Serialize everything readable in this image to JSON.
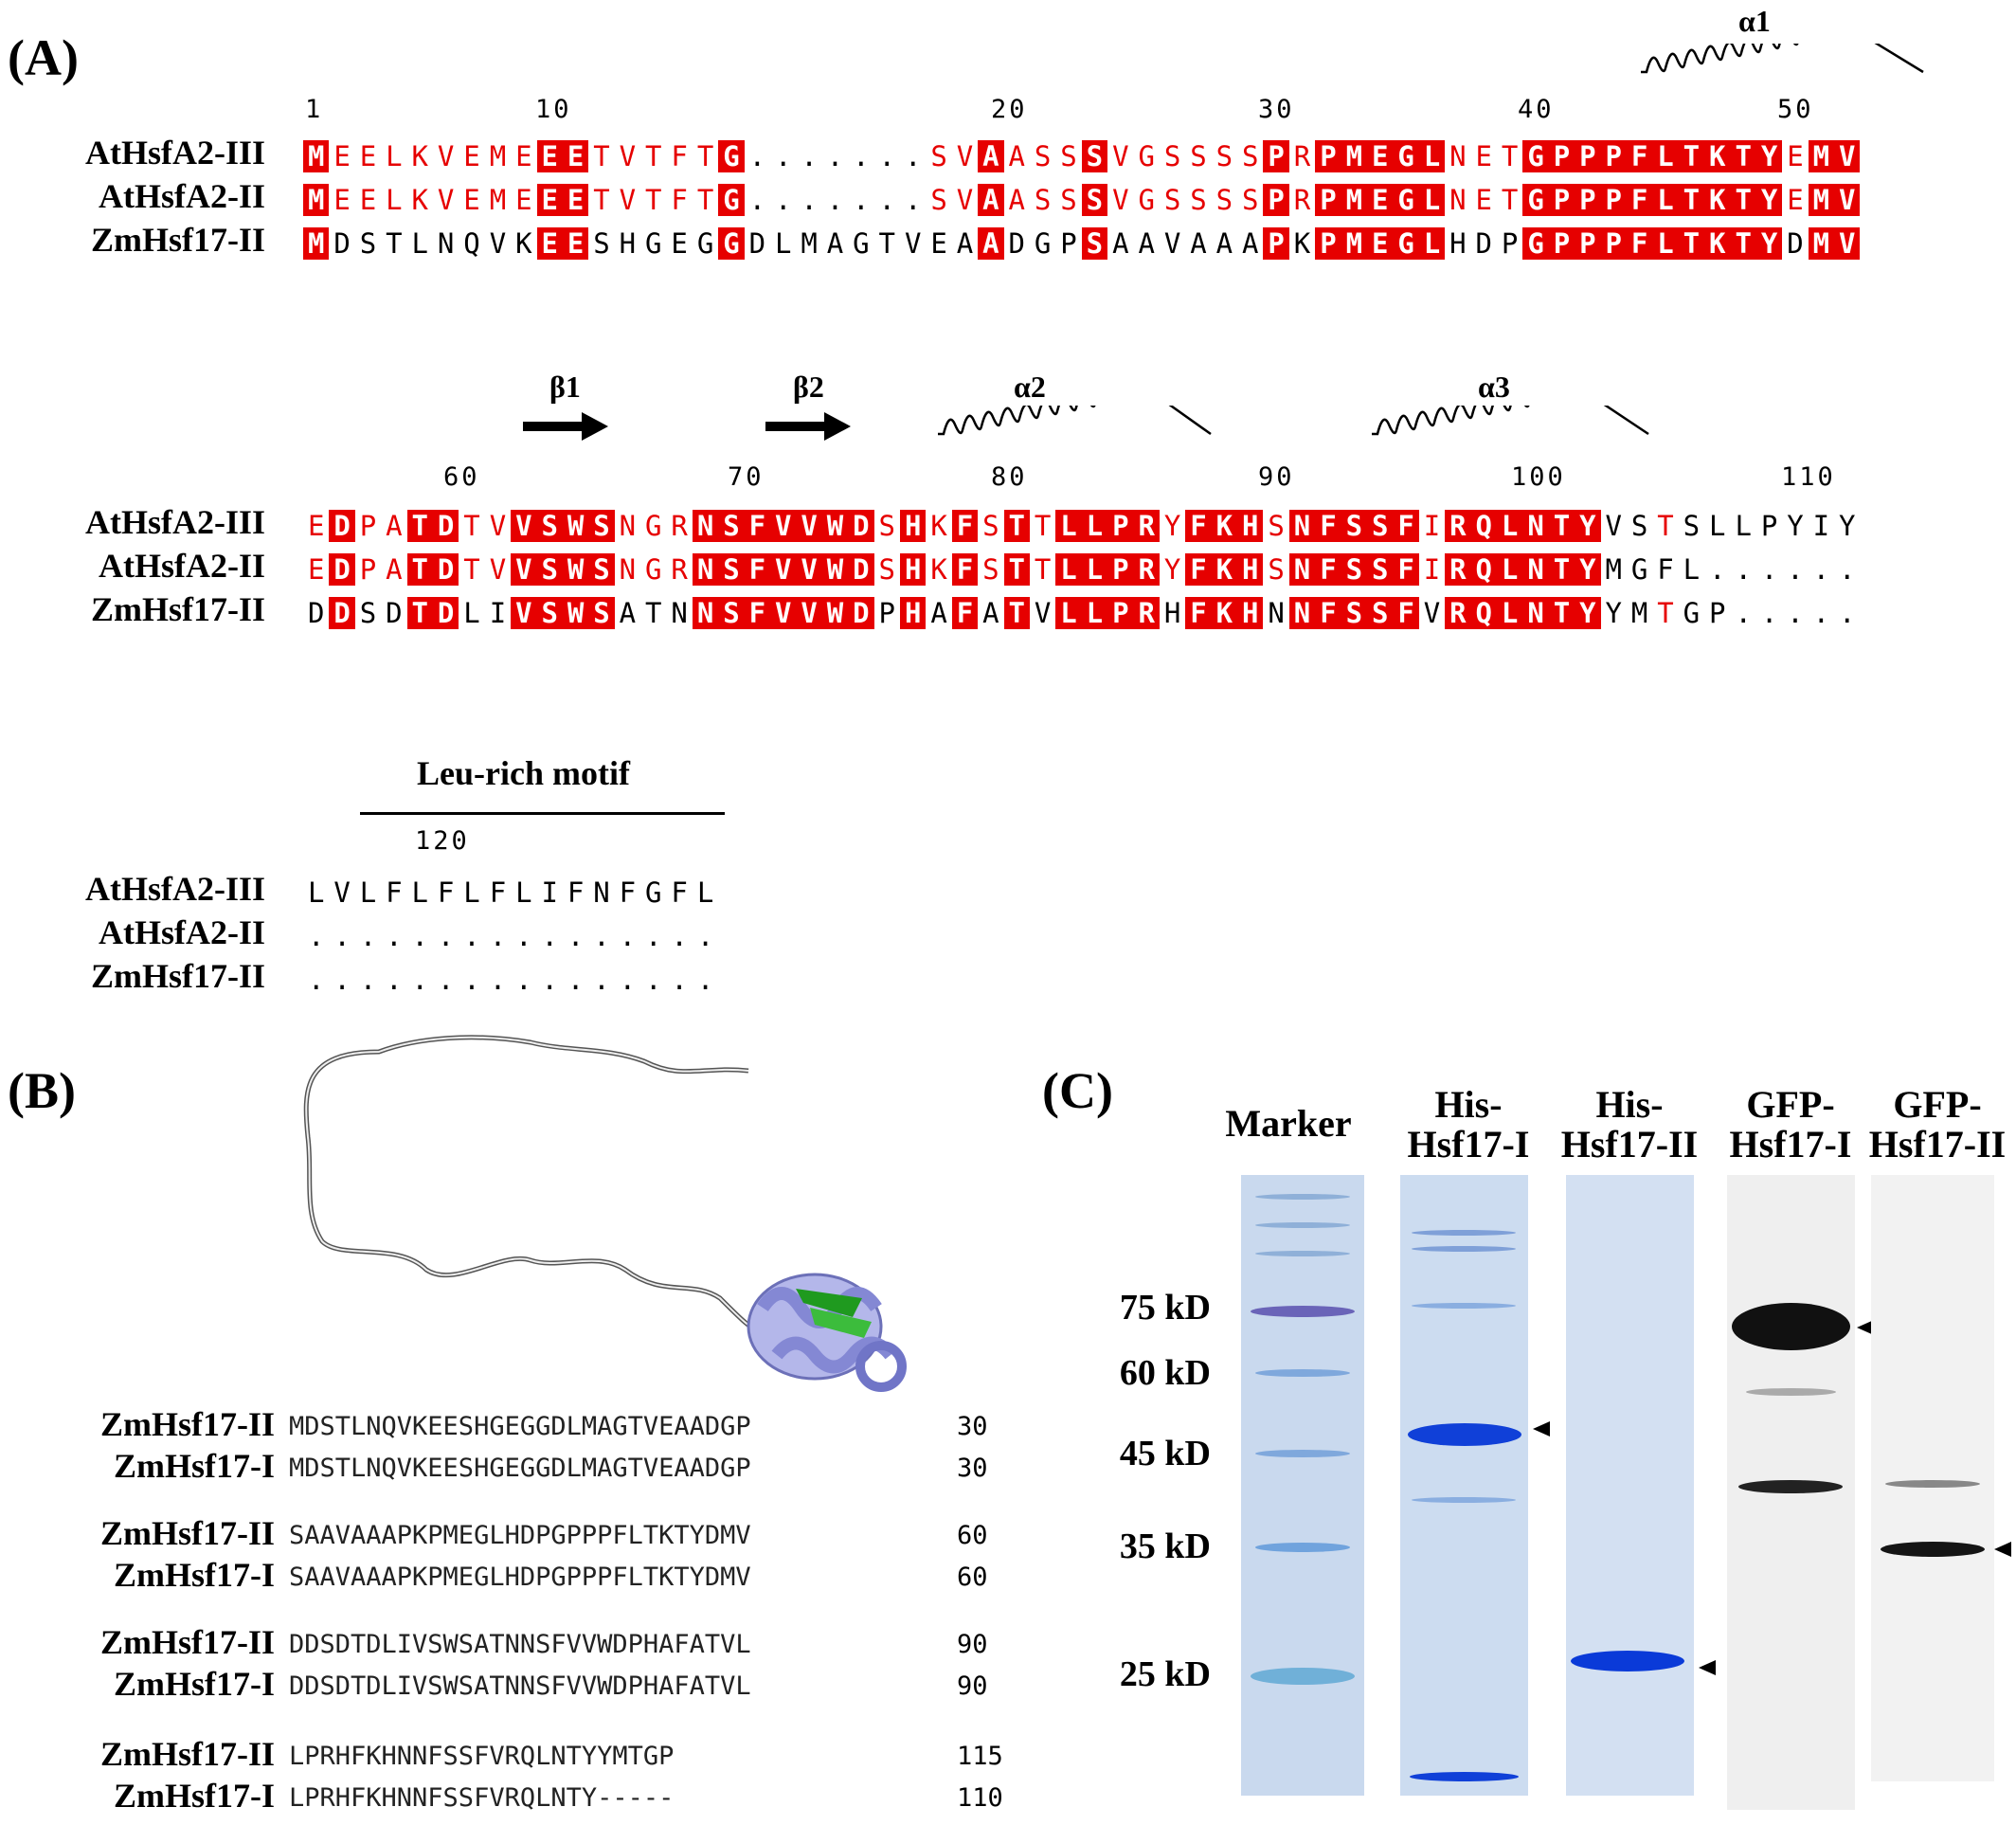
{
  "panelA": {
    "label": "(A)",
    "names": [
      "AtHsfA2-III",
      "AtHsfA2-II",
      "ZmHsf17-II"
    ],
    "block1": {
      "ruler": [
        "1",
        "10",
        "20",
        "30",
        "40",
        "50"
      ],
      "ss": [
        "α1"
      ],
      "rows": [
        "MEELKVEMEEETVTFTG.......SVAASSSVGSSSSPRPMEGLNETGPPPFLTKTYEMV",
        "MEELKVEMEEETVTFTG.......SVAASSSVGSSSSPRPMEGLNETGPPPFLTKTYEMV",
        "MDSTLNQVKEESHGEGGDLMAGTVEAADGPSAAVAAAPKPMEGLHDPGPPPFLTKTYDMV"
      ]
    },
    "block2": {
      "ruler": [
        "60",
        "70",
        "80",
        "90",
        "100",
        "110"
      ],
      "ss": [
        "β1",
        "β2",
        "α2",
        "α3"
      ],
      "rows": [
        "EDPATDTVVSWSNGRNSFVVWDSHKFSTTLLPRYFKHSNFSSFIRQLNTYVSTSLLPYIY",
        "EDPATDTVVSWSNGRNSFVVWDSHKFSTTLLPRYFKHSNFSSFIRQLNTYMGFL......",
        "DDSDTDLIVSWSATNNSFVVWDPHAFATVLLPRHFKHNNFSSFVRQLNTYYMTGP....."
      ]
    },
    "block3": {
      "ruler": [
        "120"
      ],
      "motif": "Leu-rich motif",
      "rows": [
        "LVLFLFLFLIFNFGFL",
        "................",
        "................"
      ]
    }
  },
  "panelB": {
    "label": "(B)",
    "blocks": [
      {
        "names": [
          "ZmHsf17-II",
          "ZmHsf17-I"
        ],
        "seqs": [
          "MDSTLNQVKEESHGEGGDLMAGTVEAADGP",
          "MDSTLNQVKEESHGEGGDLMAGTVEAADGP"
        ],
        "nums": [
          "30",
          "30"
        ]
      },
      {
        "names": [
          "ZmHsf17-II",
          "ZmHsf17-I"
        ],
        "seqs": [
          "SAAVAAAPKPMEGLHDPGPPPFLTKTYDMV",
          "SAAVAAAPKPMEGLHDPGPPPFLTKTYDMV"
        ],
        "nums": [
          "60",
          "60"
        ]
      },
      {
        "names": [
          "ZmHsf17-II",
          "ZmHsf17-I"
        ],
        "seqs": [
          "DDSDTDLIVSWSATNNSFVVWDPHAFATVL",
          "DDSDTDLIVSWSATNNSFVVWDPHAFATVL"
        ],
        "nums": [
          "90",
          "90"
        ]
      },
      {
        "names": [
          "ZmHsf17-II",
          "ZmHsf17-I"
        ],
        "seqs": [
          "LPRHFKHNNFSSFVRQLNTYYMTGP",
          "LPRHFKHNNFSSFVRQLNTY-----"
        ],
        "nums": [
          "115",
          "110"
        ]
      }
    ]
  },
  "panelC": {
    "label": "(C)",
    "lanes": [
      "Marker",
      "His-\nHsf17-I",
      "His-\nHsf17-II",
      "GFP-\nHsf17-I",
      "GFP-\nHsf17-II"
    ],
    "markers": [
      "75 kD",
      "60 kD",
      "45 kD",
      "35 kD",
      "25 kD"
    ]
  }
}
